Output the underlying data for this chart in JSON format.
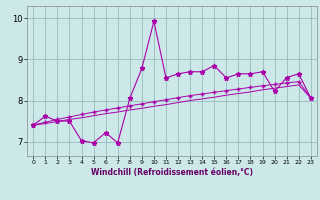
{
  "xlabel": "Windchill (Refroidissement éolien,°C)",
  "xlim": [
    -0.5,
    23.5
  ],
  "ylim": [
    6.65,
    10.3
  ],
  "yticks": [
    7,
    8,
    9,
    10
  ],
  "xticks": [
    0,
    1,
    2,
    3,
    4,
    5,
    6,
    7,
    8,
    9,
    10,
    11,
    12,
    13,
    14,
    15,
    16,
    17,
    18,
    19,
    20,
    21,
    22,
    23
  ],
  "bg_color": "#cce8e8",
  "line_color": "#aa00aa",
  "grid_color": "#99bbbb",
  "y_main": [
    7.4,
    7.62,
    7.5,
    7.5,
    7.02,
    6.97,
    7.22,
    6.97,
    8.05,
    8.78,
    9.93,
    8.55,
    8.65,
    8.7,
    8.7,
    8.85,
    8.55,
    8.65,
    8.65,
    8.7,
    8.22,
    8.56,
    8.65,
    8.06
  ],
  "y_trend1": [
    7.4,
    7.47,
    7.54,
    7.6,
    7.66,
    7.72,
    7.77,
    7.82,
    7.87,
    7.92,
    7.97,
    8.02,
    8.07,
    8.12,
    8.16,
    8.2,
    8.24,
    8.28,
    8.32,
    8.36,
    8.39,
    8.43,
    8.46,
    8.06
  ],
  "y_trend2": [
    7.4,
    7.44,
    7.49,
    7.54,
    7.58,
    7.63,
    7.68,
    7.72,
    7.77,
    7.81,
    7.86,
    7.9,
    7.95,
    8.0,
    8.04,
    8.08,
    8.13,
    8.17,
    8.21,
    8.26,
    8.3,
    8.34,
    8.38,
    8.06
  ]
}
